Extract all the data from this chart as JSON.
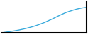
{
  "line_x": [
    0,
    1,
    2,
    3,
    4,
    5,
    6,
    7,
    8,
    9,
    10,
    11,
    12,
    13,
    14,
    15,
    16,
    17,
    18,
    19,
    20
  ],
  "line_y": [
    0,
    500,
    1000,
    1500,
    2100,
    2800,
    3600,
    4500,
    5500,
    6700,
    8000,
    9500,
    11000,
    12700,
    14300,
    15800,
    17000,
    18100,
    19000,
    19700,
    20146
  ],
  "line_color": "#3aabdc",
  "line_width": 1.0,
  "background_color": "#ffffff",
  "ylim": [
    0,
    25000
  ],
  "xlim": [
    0,
    20
  ],
  "spine_color": "#000000",
  "spine_linewidth": 1.5
}
